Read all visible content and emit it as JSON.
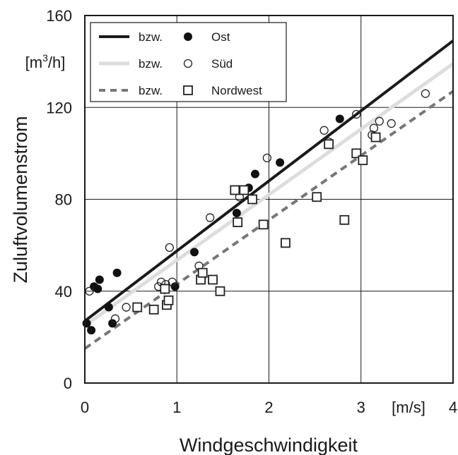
{
  "chart_data": {
    "type": "scatter",
    "xlabel": "Windgeschwindigkeit",
    "x_unit": "[m/s]",
    "ylabel": "Zuluftvolumenstrom",
    "y_unit_prefix": "[m",
    "y_unit_exp": "3",
    "y_unit_suffix": "/h]",
    "xlim": [
      0,
      4
    ],
    "ylim": [
      0,
      160
    ],
    "x_ticks": [
      "0",
      "1",
      "2",
      "3",
      "4"
    ],
    "y_ticks": [
      "0",
      "40",
      "80",
      "120",
      "160"
    ],
    "grid": true,
    "legend": "top-left",
    "series": [
      {
        "name": "Ost",
        "legend_prefix": "bzw.",
        "marker": "filled-circle",
        "line_style": "solid",
        "line_color": "#1a1a1a",
        "fit": [
          [
            0,
            27
          ],
          [
            4,
            149
          ]
        ],
        "points": [
          [
            0.02,
            26
          ],
          [
            0.07,
            23
          ],
          [
            0.1,
            42
          ],
          [
            0.14,
            41
          ],
          [
            0.16,
            45
          ],
          [
            0.26,
            33
          ],
          [
            0.3,
            26
          ],
          [
            0.35,
            48
          ],
          [
            0.98,
            42
          ],
          [
            1.19,
            57
          ],
          [
            1.65,
            74
          ],
          [
            1.78,
            85
          ],
          [
            1.85,
            91
          ],
          [
            2.12,
            96
          ],
          [
            2.77,
            115
          ]
        ]
      },
      {
        "name": "Süd",
        "legend_prefix": "bzw.",
        "marker": "open-circle",
        "line_style": "solid",
        "line_color": "#dddddd",
        "fit": [
          [
            0,
            25
          ],
          [
            4,
            139
          ]
        ],
        "points": [
          [
            0.05,
            40
          ],
          [
            0.33,
            28
          ],
          [
            0.45,
            33
          ],
          [
            0.8,
            42
          ],
          [
            0.83,
            44
          ],
          [
            0.88,
            43
          ],
          [
            0.92,
            59
          ],
          [
            0.95,
            44
          ],
          [
            1.24,
            51
          ],
          [
            1.27,
            46
          ],
          [
            1.36,
            72
          ],
          [
            1.68,
            81
          ],
          [
            1.98,
            98
          ],
          [
            2.6,
            110
          ],
          [
            2.65,
            105
          ],
          [
            2.95,
            117
          ],
          [
            3.12,
            108
          ],
          [
            3.14,
            111
          ],
          [
            3.2,
            114
          ],
          [
            3.33,
            113
          ],
          [
            3.7,
            126
          ]
        ]
      },
      {
        "name": "Nordwest",
        "legend_prefix": "bzw.",
        "marker": "open-square",
        "line_style": "dashed",
        "line_color": "#777777",
        "fit": [
          [
            0,
            15
          ],
          [
            4,
            127
          ]
        ],
        "points": [
          [
            0.57,
            33
          ],
          [
            0.75,
            32
          ],
          [
            0.87,
            41
          ],
          [
            0.89,
            34
          ],
          [
            0.91,
            36
          ],
          [
            1.26,
            45
          ],
          [
            1.28,
            48
          ],
          [
            1.39,
            45
          ],
          [
            1.47,
            40
          ],
          [
            1.63,
            84
          ],
          [
            1.66,
            70
          ],
          [
            1.73,
            84
          ],
          [
            1.82,
            80
          ],
          [
            1.94,
            69
          ],
          [
            2.18,
            61
          ],
          [
            2.52,
            81
          ],
          [
            2.65,
            104
          ],
          [
            2.82,
            71
          ],
          [
            2.95,
            100
          ],
          [
            3.02,
            97
          ],
          [
            3.16,
            107
          ]
        ]
      }
    ]
  }
}
